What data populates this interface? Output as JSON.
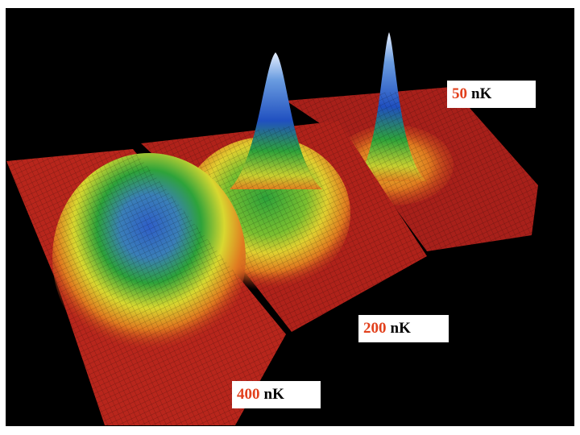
{
  "labels": [
    {
      "value": 50,
      "unit": "nK"
    },
    {
      "value": 200,
      "unit": "nK"
    },
    {
      "value": 400,
      "unit": "nK"
    }
  ]
}
